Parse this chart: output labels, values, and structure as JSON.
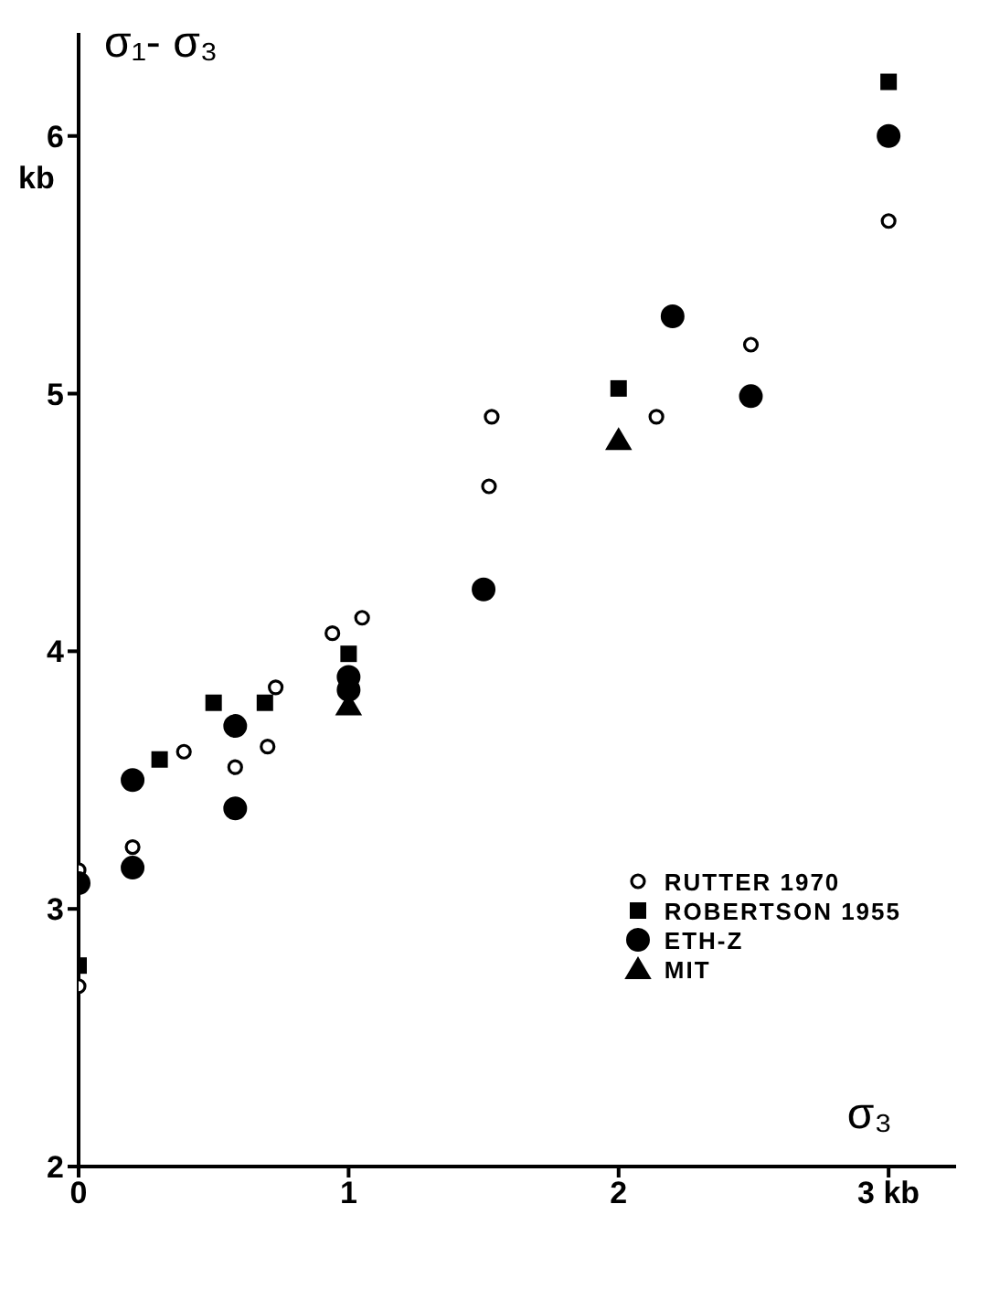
{
  "chart_data": {
    "type": "scatter",
    "xlabel": "σ₃",
    "ylabel": "σ₁- σ₃",
    "annotations": [
      "kb"
    ],
    "xlim": [
      0,
      3.25
    ],
    "xticks": [
      0,
      1,
      2,
      {
        "value": 3,
        "label": "3 kb"
      }
    ],
    "ylim": [
      2,
      6.4
    ],
    "yticks": [
      2,
      3,
      4,
      5,
      6
    ],
    "grid": false,
    "legend": "bottom right",
    "series": [
      {
        "name": "RUTTER 1970",
        "color": "#ffffff",
        "marker": "circle",
        "x": [
          0,
          0,
          0.2,
          0.39,
          0.58,
          0.7,
          0.73,
          0.94,
          1.05,
          1.52,
          1.53,
          2.14,
          2.49,
          3.0
        ],
        "values": [
          3.15,
          2.7,
          3.24,
          3.61,
          3.55,
          3.63,
          3.86,
          4.07,
          4.13,
          4.64,
          4.91,
          4.91,
          5.19,
          5.67
        ]
      },
      {
        "name": "ROBERTSON 1955",
        "color": "#000000",
        "marker": "square",
        "x": [
          0,
          0.3,
          0.5,
          0.69,
          1.0,
          2.0,
          3.0
        ],
        "values": [
          2.78,
          3.58,
          3.8,
          3.8,
          3.99,
          5.02,
          6.21
        ]
      },
      {
        "name": "ETH-Z",
        "color": "#000000",
        "marker": "circle",
        "x": [
          0,
          0.2,
          0.2,
          0.58,
          0.58,
          1.0,
          1.0,
          1.5,
          2.2,
          2.49,
          3.0
        ],
        "values": [
          3.1,
          3.5,
          3.16,
          3.71,
          3.39,
          3.9,
          3.85,
          4.24,
          5.3,
          4.99,
          6.0
        ]
      },
      {
        "name": "MIT",
        "color": "#000000",
        "marker": "triangle",
        "x": [
          1.0,
          2.0
        ],
        "values": [
          3.79,
          4.82
        ]
      }
    ]
  }
}
